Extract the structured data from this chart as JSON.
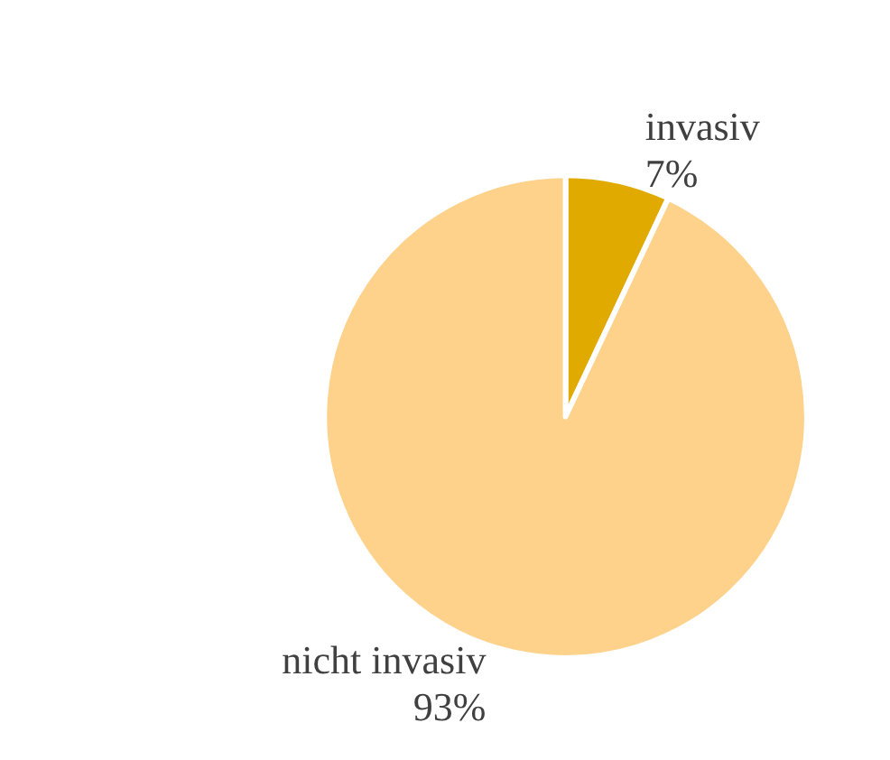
{
  "chart_data": {
    "type": "pie",
    "categories": [
      "invasiv",
      "nicht invasiv"
    ],
    "values": [
      7,
      93
    ],
    "colors": [
      "#e0aa00",
      "#fed28a"
    ],
    "value_labels": [
      "7%",
      "93%"
    ],
    "legend": false
  }
}
